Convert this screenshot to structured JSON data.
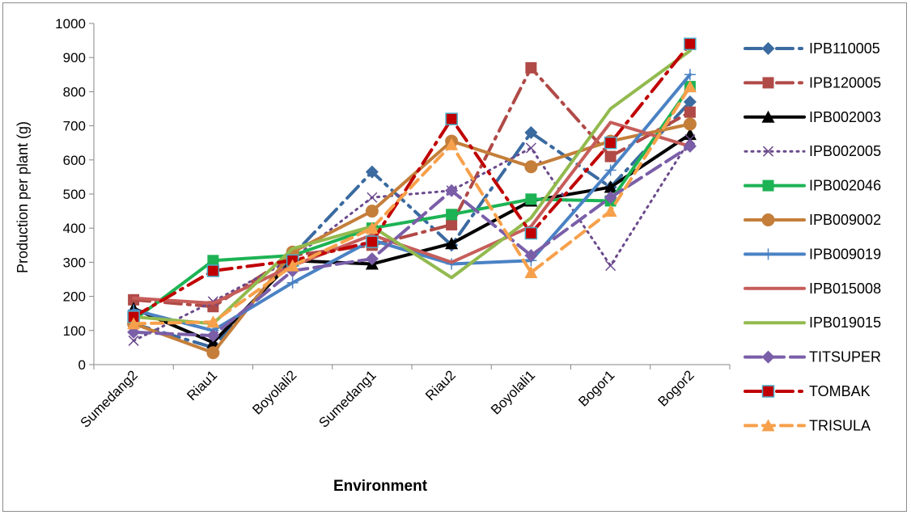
{
  "chart_data": {
    "type": "line",
    "title": "",
    "xlabel": "Environment",
    "ylabel": "Production per plant (g)",
    "ylim": [
      0,
      1000
    ],
    "y_ticks": [
      0,
      100,
      200,
      300,
      400,
      500,
      600,
      700,
      800,
      900,
      1000
    ],
    "grid": false,
    "legend_position": "right",
    "categories": [
      "Sumedang2",
      "Riau1",
      "Boyolali2",
      "Sumedang1",
      "Riau2",
      "Boyolali1",
      "Bogor1",
      "Bogor2"
    ],
    "series": [
      {
        "name": "IPB110005",
        "color": "#3a6aa0",
        "dash": "long-dash-dot",
        "marker": "diamond",
        "values": [
          120,
          50,
          320,
          565,
          350,
          680,
          520,
          770
        ]
      },
      {
        "name": "IPB120005",
        "color": "#b04a47",
        "dash": "long-dash-dot",
        "marker": "square",
        "values": [
          190,
          170,
          320,
          350,
          410,
          870,
          610,
          740
        ]
      },
      {
        "name": "IPB002003",
        "color": "#000000",
        "dash": "solid",
        "marker": "triangle",
        "values": [
          165,
          65,
          305,
          295,
          355,
          480,
          520,
          675
        ]
      },
      {
        "name": "IPB002005",
        "color": "#6b4a8c",
        "dash": "dot",
        "marker": "x",
        "values": [
          70,
          185,
          310,
          490,
          510,
          635,
          290,
          660
        ]
      },
      {
        "name": "IPB002046",
        "color": "#1db354",
        "dash": "solid",
        "marker": "square",
        "values": [
          130,
          305,
          320,
          400,
          440,
          485,
          480,
          815
        ]
      },
      {
        "name": "IPB009002",
        "color": "#c47e3a",
        "dash": "solid",
        "marker": "circle",
        "values": [
          120,
          35,
          330,
          450,
          655,
          580,
          655,
          705
        ]
      },
      {
        "name": "IPB009019",
        "color": "#4a82c4",
        "dash": "solid",
        "marker": "plus",
        "values": [
          160,
          100,
          240,
          365,
          295,
          305,
          570,
          850
        ]
      },
      {
        "name": "IPB015008",
        "color": "#c65d5a",
        "dash": "solid",
        "marker": "none",
        "values": [
          195,
          180,
          290,
          380,
          300,
          405,
          710,
          640
        ]
      },
      {
        "name": "IPB019015",
        "color": "#92ba4e",
        "dash": "solid",
        "marker": "none",
        "values": [
          140,
          120,
          340,
          405,
          255,
          430,
          750,
          920
        ]
      },
      {
        "name": "TITSUPER",
        "color": "#7a5ea8",
        "dash": "long-dash",
        "marker": "diamond",
        "values": [
          95,
          85,
          275,
          310,
          510,
          320,
          490,
          640
        ]
      },
      {
        "name": "TOMBAK",
        "color": "#c00000",
        "dash": "long-dash-dot",
        "marker": "square-outlined",
        "values": [
          140,
          275,
          305,
          360,
          720,
          385,
          650,
          940
        ]
      },
      {
        "name": "TRISULA",
        "color": "#f7a04b",
        "dash": "dash",
        "marker": "triangle",
        "values": [
          120,
          125,
          290,
          400,
          645,
          270,
          450,
          815
        ]
      }
    ]
  }
}
